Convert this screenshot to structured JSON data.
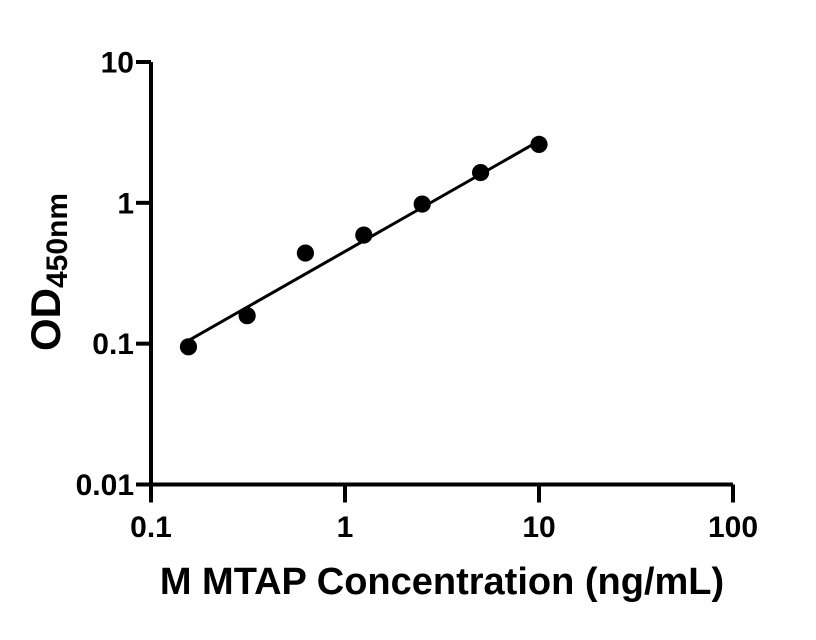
{
  "figure": {
    "background_color": "#ffffff",
    "ink_color": "#000000"
  },
  "chart_data": {
    "type": "scatter",
    "x_scale": "log",
    "y_scale": "log",
    "title": "",
    "xlabel": "M MTAP Concentration (ng/mL)",
    "ylabel_main": "OD",
    "ylabel_sub": "450nm",
    "xlim": [
      0.1,
      100
    ],
    "ylim": [
      0.01,
      10
    ],
    "grid": false,
    "legend": null,
    "x_ticks": [
      {
        "value": 0.1,
        "label": "0.1"
      },
      {
        "value": 1,
        "label": "1"
      },
      {
        "value": 10,
        "label": "10"
      },
      {
        "value": 100,
        "label": "100"
      }
    ],
    "y_ticks": [
      {
        "value": 10,
        "label": "10"
      },
      {
        "value": 1,
        "label": "1"
      },
      {
        "value": 0.1,
        "label": "0.1"
      },
      {
        "value": 0.01,
        "label": "0.01"
      }
    ],
    "series": [
      {
        "marker": "circle",
        "color": "#000000",
        "points": [
          {
            "x": 0.156,
            "y": 0.095
          },
          {
            "x": 0.313,
            "y": 0.158
          },
          {
            "x": 0.625,
            "y": 0.44
          },
          {
            "x": 1.25,
            "y": 0.59
          },
          {
            "x": 2.5,
            "y": 0.98
          },
          {
            "x": 5,
            "y": 1.64
          },
          {
            "x": 10,
            "y": 2.6
          }
        ]
      }
    ],
    "fit_line": {
      "x1": 0.15,
      "y1": 0.102,
      "x2": 10,
      "y2": 2.75
    }
  }
}
